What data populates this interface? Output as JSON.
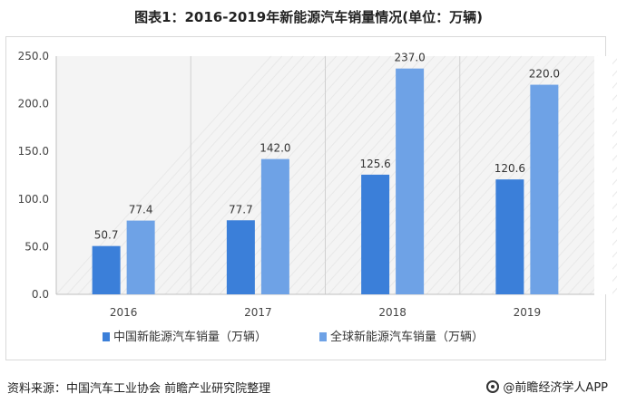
{
  "title": "图表1：2016-2019年新能源汽车销量情况(单位：万辆)",
  "footer": {
    "source": "资料来源：中国汽车工业协会 前瞻产业研究院整理",
    "brand": "@前瞻经济学人APP"
  },
  "chart_data": {
    "type": "bar",
    "title": "图表1：2016-2019年新能源汽车销量情况(单位：万辆)",
    "categories": [
      "2016",
      "2017",
      "2018",
      "2019"
    ],
    "series": [
      {
        "name": "中国新能源汽车销量（万辆）",
        "values": [
          50.7,
          77.7,
          125.6,
          120.6
        ],
        "color": "#3b7fd9"
      },
      {
        "name": "全球新能源汽车销量（万辆）",
        "values": [
          77.4,
          142.0,
          237.0,
          220.0
        ],
        "color": "#6ea2e6"
      }
    ],
    "value_labels": [
      [
        "50.7",
        "77.7",
        "125.6",
        "120.6"
      ],
      [
        "77.4",
        "142.0",
        "237.0",
        "220.0"
      ]
    ],
    "yticks": [
      "0.0",
      "50.0",
      "100.0",
      "150.0",
      "200.0",
      "250.0"
    ],
    "ylim": [
      0,
      250
    ],
    "grid": "vertical-separators",
    "legend_position": "bottom"
  }
}
